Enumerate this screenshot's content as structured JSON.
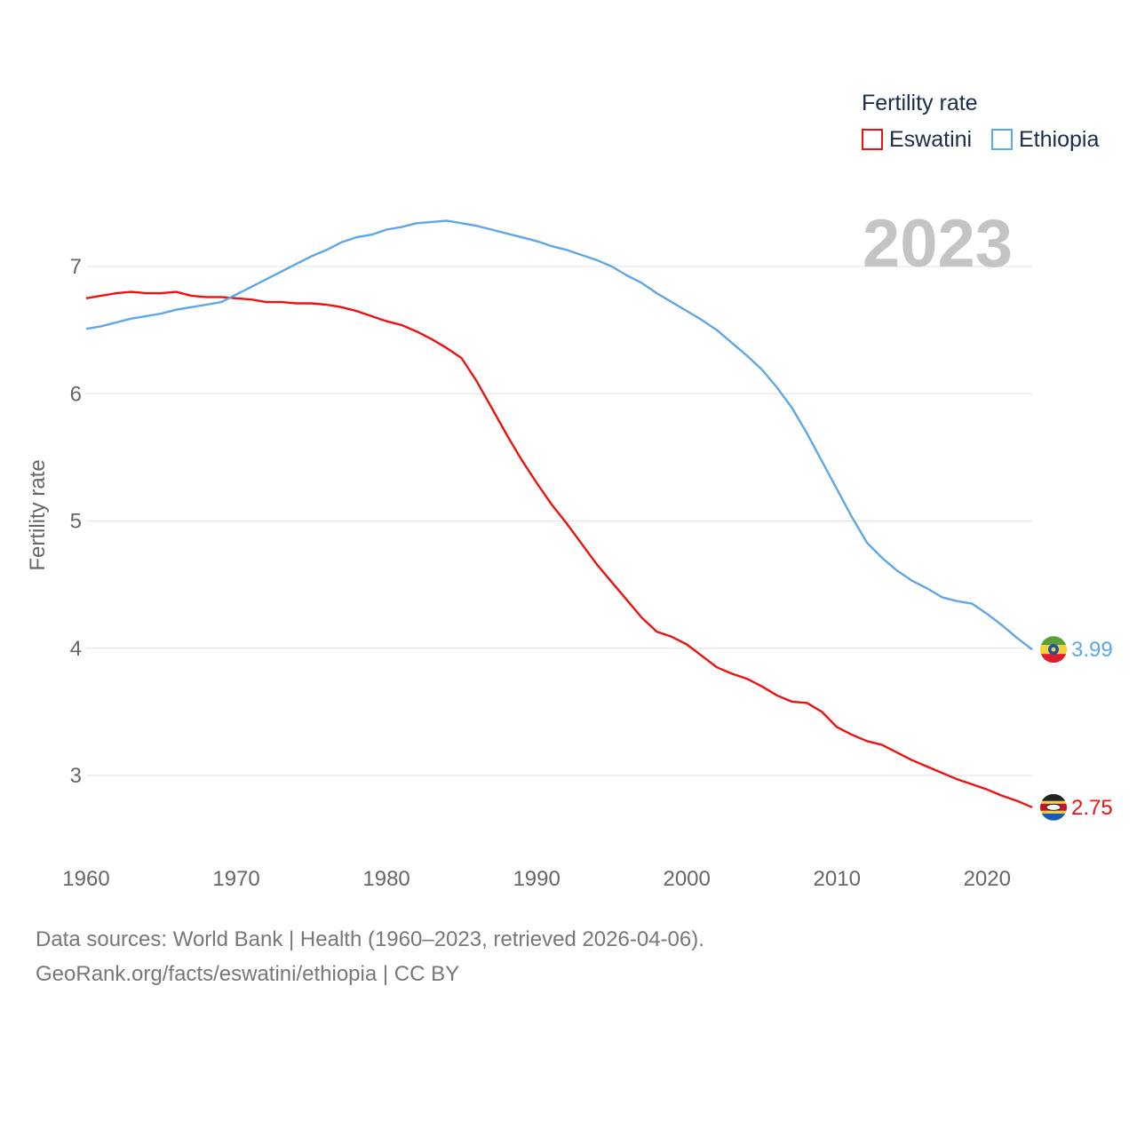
{
  "chart_data": {
    "type": "line",
    "ylabel": "Fertility rate",
    "xlabel": "",
    "xlim": [
      1960,
      2023
    ],
    "ylim": [
      2.5,
      7.6
    ],
    "x_ticks": [
      1960,
      1970,
      1980,
      1990,
      2000,
      2010,
      2020
    ],
    "y_ticks": [
      3,
      4,
      5,
      6,
      7
    ],
    "grid": true,
    "legend": {
      "title": "Fertility rate",
      "position": "top-right"
    },
    "current_year": "2023",
    "series": [
      {
        "name": "Eswatini",
        "color": "#ee1111",
        "end_label": "2.75",
        "flag_icon": "eswatini-flag-icon",
        "x": [
          1960,
          1961,
          1962,
          1963,
          1964,
          1965,
          1966,
          1967,
          1968,
          1969,
          1970,
          1971,
          1972,
          1973,
          1974,
          1975,
          1976,
          1977,
          1978,
          1979,
          1980,
          1981,
          1982,
          1983,
          1984,
          1985,
          1986,
          1987,
          1988,
          1989,
          1990,
          1991,
          1992,
          1993,
          1994,
          1995,
          1996,
          1997,
          1998,
          1999,
          2000,
          2001,
          2002,
          2003,
          2004,
          2005,
          2006,
          2007,
          2008,
          2009,
          2010,
          2011,
          2012,
          2013,
          2014,
          2015,
          2016,
          2017,
          2018,
          2019,
          2020,
          2021,
          2022,
          2023
        ],
        "values": [
          6.75,
          6.77,
          6.79,
          6.8,
          6.79,
          6.79,
          6.8,
          6.77,
          6.76,
          6.76,
          6.75,
          6.74,
          6.72,
          6.72,
          6.71,
          6.71,
          6.7,
          6.68,
          6.65,
          6.61,
          6.57,
          6.54,
          6.49,
          6.43,
          6.36,
          6.28,
          6.1,
          5.89,
          5.68,
          5.48,
          5.3,
          5.13,
          4.98,
          4.82,
          4.66,
          4.52,
          4.38,
          4.24,
          4.13,
          4.09,
          4.03,
          3.94,
          3.85,
          3.8,
          3.76,
          3.7,
          3.63,
          3.58,
          3.57,
          3.5,
          3.38,
          3.32,
          3.27,
          3.24,
          3.18,
          3.12,
          3.07,
          3.02,
          2.97,
          2.93,
          2.89,
          2.84,
          2.8,
          2.75
        ]
      },
      {
        "name": "Ethiopia",
        "color": "#5ea6e8",
        "end_label": "3.99",
        "flag_icon": "ethiopia-flag-icon",
        "x": [
          1960,
          1961,
          1962,
          1963,
          1964,
          1965,
          1966,
          1967,
          1968,
          1969,
          1970,
          1971,
          1972,
          1973,
          1974,
          1975,
          1976,
          1977,
          1978,
          1979,
          1980,
          1981,
          1982,
          1983,
          1984,
          1985,
          1986,
          1987,
          1988,
          1989,
          1990,
          1991,
          1992,
          1993,
          1994,
          1995,
          1996,
          1997,
          1998,
          1999,
          2000,
          2001,
          2002,
          2003,
          2004,
          2005,
          2006,
          2007,
          2008,
          2009,
          2010,
          2011,
          2012,
          2013,
          2014,
          2015,
          2016,
          2017,
          2018,
          2019,
          2020,
          2021,
          2022,
          2023
        ],
        "values": [
          6.51,
          6.53,
          6.56,
          6.59,
          6.61,
          6.63,
          6.66,
          6.68,
          6.7,
          6.72,
          6.78,
          6.84,
          6.9,
          6.96,
          7.02,
          7.08,
          7.13,
          7.19,
          7.23,
          7.25,
          7.29,
          7.31,
          7.34,
          7.35,
          7.36,
          7.34,
          7.32,
          7.29,
          7.26,
          7.23,
          7.2,
          7.16,
          7.13,
          7.09,
          7.05,
          7.0,
          6.93,
          6.87,
          6.79,
          6.72,
          6.65,
          6.58,
          6.5,
          6.4,
          6.3,
          6.19,
          6.05,
          5.89,
          5.69,
          5.47,
          5.25,
          5.03,
          4.83,
          4.71,
          4.61,
          4.53,
          4.47,
          4.4,
          4.37,
          4.35,
          4.27,
          4.18,
          4.08,
          3.99
        ]
      }
    ]
  },
  "footer": {
    "sources": "Data sources: World Bank | Health (1960–2023, retrieved 2026-04-06).",
    "attribution": "GeoRank.org/facts/eswatini/ethiopia | CC BY"
  }
}
